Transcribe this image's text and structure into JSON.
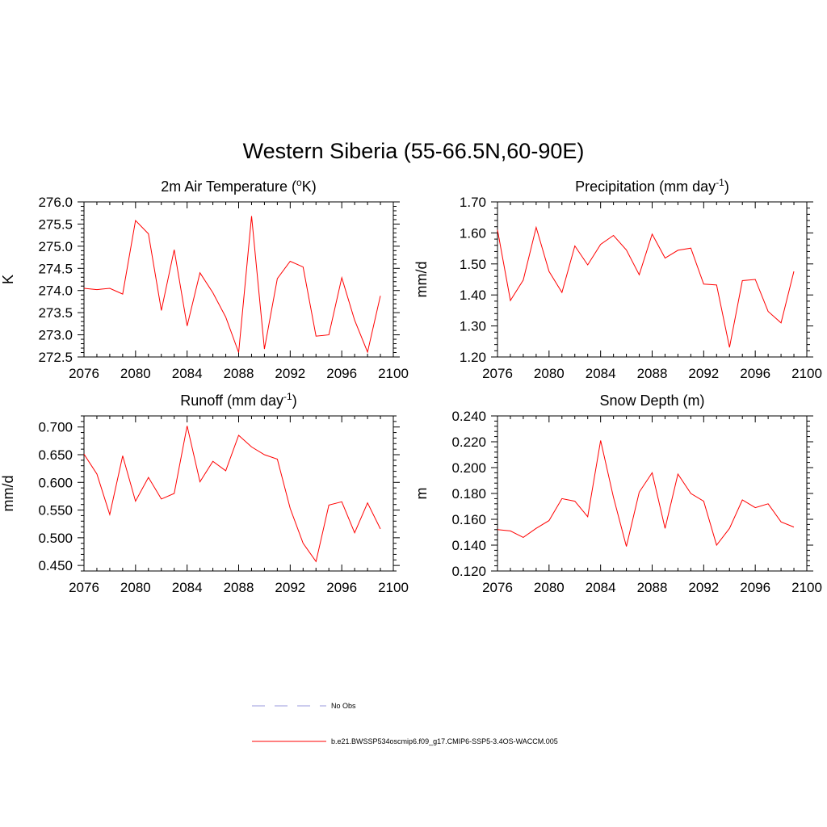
{
  "figure": {
    "title": "Western Siberia (55-66.5N,60-90E)"
  },
  "chart_data": [
    {
      "type": "line",
      "title": "2m Air Temperature (",
      "title_super": "o",
      "title_after": "K)",
      "xlabel": "",
      "ylabel": "K",
      "xlim": [
        2076,
        2100
      ],
      "ylim": [
        272.5,
        276.0
      ],
      "x_ticks": [
        "2076",
        "2080",
        "2084",
        "2088",
        "2092",
        "2096",
        "2100"
      ],
      "y_ticks": [
        "276.0",
        "275.5",
        "275.0",
        "274.5",
        "274.0",
        "273.5",
        "273.0",
        "272.5"
      ],
      "color": "#ff0000",
      "x": [
        2076,
        2077,
        2078,
        2079,
        2080,
        2081,
        2082,
        2083,
        2084,
        2085,
        2086,
        2087,
        2088,
        2089,
        2090,
        2091,
        2092,
        2093,
        2094,
        2095,
        2096,
        2097,
        2098,
        2099
      ],
      "values": [
        274.05,
        274.02,
        274.05,
        273.92,
        275.58,
        275.28,
        273.55,
        274.92,
        273.2,
        274.4,
        273.95,
        273.4,
        272.6,
        275.68,
        272.68,
        274.27,
        274.66,
        274.53,
        272.97,
        273.0,
        274.29,
        273.33,
        272.61,
        273.88
      ]
    },
    {
      "type": "line",
      "title": "Precipitation (mm day",
      "title_super": "-1",
      "title_after": ")",
      "xlabel": "",
      "ylabel": "mm/d",
      "xlim": [
        2076,
        2100
      ],
      "ylim": [
        1.2,
        1.7
      ],
      "x_ticks": [
        "2076",
        "2080",
        "2084",
        "2088",
        "2092",
        "2096",
        "2100"
      ],
      "y_ticks": [
        "1.70",
        "1.60",
        "1.50",
        "1.40",
        "1.30",
        "1.20"
      ],
      "color": "#ff0000",
      "x": [
        2076,
        2077,
        2078,
        2079,
        2080,
        2081,
        2082,
        2083,
        2084,
        2085,
        2086,
        2087,
        2088,
        2089,
        2090,
        2091,
        2092,
        2093,
        2094,
        2095,
        2096,
        2097,
        2098,
        2099
      ],
      "values": [
        1.61,
        1.382,
        1.448,
        1.618,
        1.476,
        1.408,
        1.558,
        1.497,
        1.563,
        1.592,
        1.545,
        1.465,
        1.596,
        1.519,
        1.544,
        1.551,
        1.435,
        1.432,
        1.231,
        1.446,
        1.45,
        1.347,
        1.31,
        1.476
      ]
    },
    {
      "type": "line",
      "title": "Runoff (mm day",
      "title_super": "-1",
      "title_after": ")",
      "xlabel": "",
      "ylabel": "mm/d",
      "xlim": [
        2076,
        2100
      ],
      "ylim": [
        0.44,
        0.72
      ],
      "x_ticks": [
        "2076",
        "2080",
        "2084",
        "2088",
        "2092",
        "2096",
        "2100"
      ],
      "y_ticks": [
        "0.700",
        "0.650",
        "0.600",
        "0.550",
        "0.500",
        "0.450"
      ],
      "color": "#ff0000",
      "x": [
        2076,
        2077,
        2078,
        2079,
        2080,
        2081,
        2082,
        2083,
        2084,
        2085,
        2086,
        2087,
        2088,
        2089,
        2090,
        2091,
        2092,
        2093,
        2094,
        2095,
        2096,
        2097,
        2098,
        2099
      ],
      "values": [
        0.651,
        0.615,
        0.542,
        0.648,
        0.566,
        0.609,
        0.57,
        0.58,
        0.702,
        0.601,
        0.638,
        0.621,
        0.685,
        0.664,
        0.65,
        0.642,
        0.553,
        0.49,
        0.457,
        0.559,
        0.565,
        0.509,
        0.563,
        0.516
      ]
    },
    {
      "type": "line",
      "title": "Snow Depth (m)",
      "title_super": "",
      "title_after": "",
      "xlabel": "",
      "ylabel": "m",
      "xlim": [
        2076,
        2100
      ],
      "ylim": [
        0.12,
        0.24
      ],
      "x_ticks": [
        "2076",
        "2080",
        "2084",
        "2088",
        "2092",
        "2096",
        "2100"
      ],
      "y_ticks": [
        "0.240",
        "0.220",
        "0.200",
        "0.180",
        "0.160",
        "0.140",
        "0.120"
      ],
      "color": "#ff0000",
      "x": [
        2076,
        2077,
        2078,
        2079,
        2080,
        2081,
        2082,
        2083,
        2084,
        2085,
        2086,
        2087,
        2088,
        2089,
        2090,
        2091,
        2092,
        2093,
        2094,
        2095,
        2096,
        2097,
        2098,
        2099
      ],
      "values": [
        0.152,
        0.151,
        0.146,
        0.153,
        0.159,
        0.176,
        0.174,
        0.162,
        0.221,
        0.177,
        0.139,
        0.181,
        0.196,
        0.153,
        0.195,
        0.18,
        0.174,
        0.14,
        0.153,
        0.175,
        0.169,
        0.172,
        0.158,
        0.154
      ]
    }
  ],
  "legend": {
    "items": [
      {
        "label": "No Obs",
        "color": "#9999dd",
        "style": "dashed"
      },
      {
        "label": "b.e21.BWSSP534oscmip6.f09_g17.CMIP6-SSP5-3.4OS-WACCM.005",
        "color": "#ff0000",
        "style": "solid"
      }
    ]
  }
}
